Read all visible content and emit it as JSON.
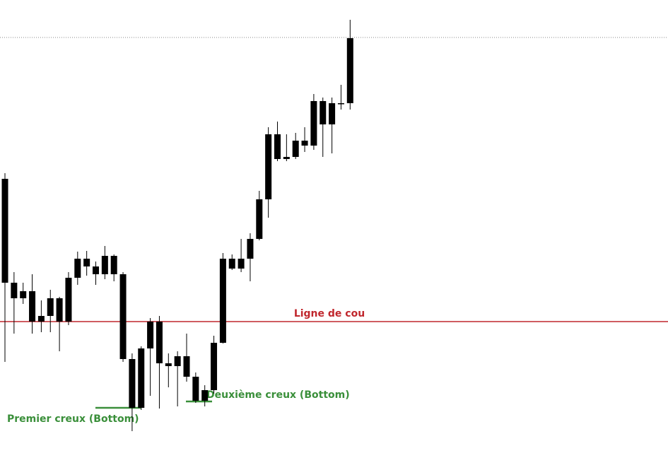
{
  "chart_data": {
    "type": "candlestick",
    "categories": [
      null,
      null,
      null,
      null,
      null,
      null,
      null,
      null,
      null,
      null,
      null,
      null,
      null,
      null,
      null,
      null,
      null,
      null,
      null,
      null,
      null,
      null,
      null,
      null,
      null,
      null,
      null,
      null,
      null,
      null,
      null,
      null,
      null,
      null,
      null,
      null,
      null,
      null,
      null
    ],
    "open": [
      395,
      248,
      226,
      236,
      193,
      201,
      226,
      193,
      255,
      282,
      271,
      260,
      286,
      260,
      140,
      71,
      155,
      193,
      134,
      130,
      144,
      115,
      81,
      96,
      163,
      282,
      268,
      282,
      310,
      366,
      458,
      426,
      426,
      449,
      442,
      505,
      472,
      502,
      502
    ],
    "high": [
      403,
      263,
      248,
      260,
      223,
      238,
      228,
      263,
      292,
      293,
      278,
      300,
      288,
      263,
      148,
      158,
      198,
      201,
      148,
      151,
      176,
      121,
      103,
      173,
      290,
      288,
      310,
      318,
      378,
      468,
      476,
      458,
      460,
      468,
      515,
      510,
      510,
      528,
      620
    ],
    "low": [
      136,
      176,
      218,
      176,
      178,
      178,
      151,
      188,
      245,
      258,
      245,
      253,
      250,
      136,
      38,
      68,
      88,
      70,
      100,
      73,
      108,
      78,
      73,
      91,
      162,
      266,
      263,
      250,
      308,
      340,
      420,
      420,
      423,
      433,
      436,
      426,
      431,
      493,
      493
    ],
    "close": [
      248,
      226,
      236,
      193,
      201,
      226,
      193,
      255,
      282,
      271,
      260,
      286,
      260,
      140,
      71,
      155,
      193,
      134,
      130,
      144,
      115,
      81,
      96,
      163,
      282,
      268,
      282,
      310,
      366,
      458,
      423,
      423,
      449,
      442,
      505,
      472,
      502,
      502,
      594
    ],
    "color": "#000000",
    "ylim": [
      0,
      648
    ],
    "last_price_line": true,
    "levels": [
      {
        "label": "Ligne de cou",
        "value": 193,
        "color": "#c0272d"
      },
      {
        "label": "Premier creux (Bottom)",
        "value": 71,
        "color": "#3a8f3a"
      },
      {
        "label": "Deuxième creux (Bottom)",
        "value": 80,
        "color": "#3a8f3a"
      }
    ]
  }
}
